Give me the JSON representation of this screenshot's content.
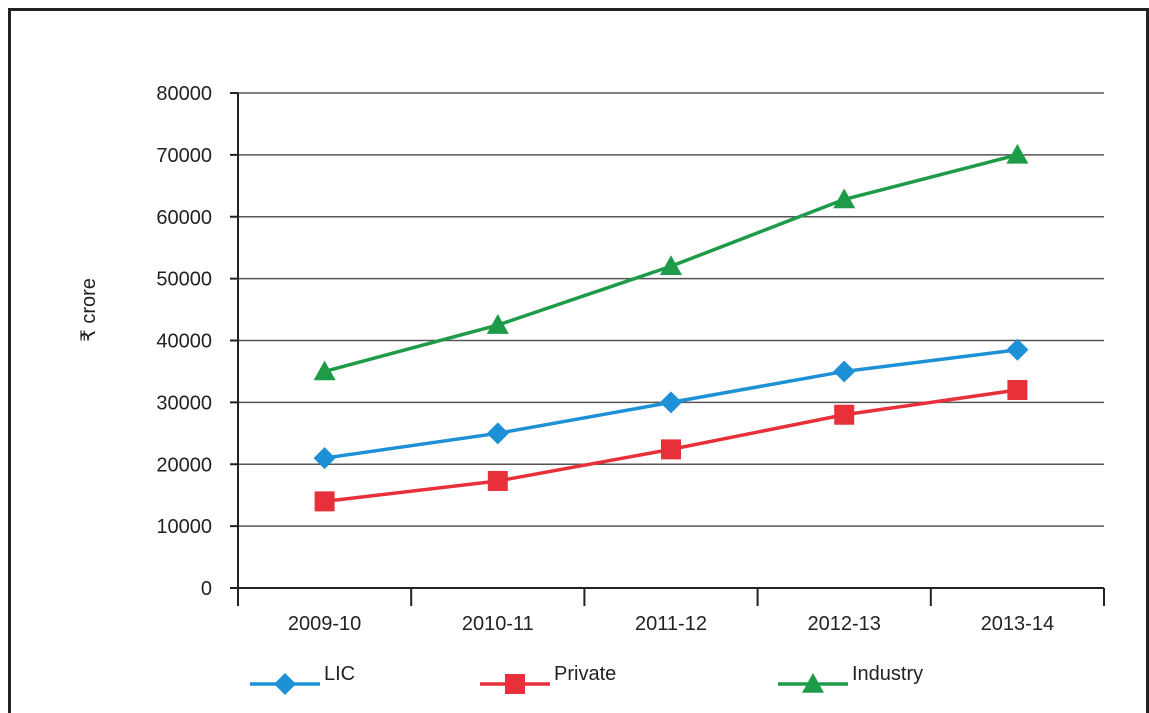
{
  "chart_data": {
    "type": "line",
    "title": "",
    "xlabel": "",
    "ylabel": "₹ crore",
    "categories": [
      "2009-10",
      "2010-11",
      "2011-12",
      "2012-13",
      "2013-14"
    ],
    "ylim": [
      0,
      80000
    ],
    "yticks": [
      0,
      10000,
      20000,
      30000,
      40000,
      50000,
      60000,
      70000,
      80000
    ],
    "ytick_labels": [
      "0",
      "10000",
      "20000",
      "30000",
      "40000",
      "50000",
      "60000",
      "70000",
      "80000"
    ],
    "grid": true,
    "legend_position": "bottom",
    "series": [
      {
        "name": "LIC",
        "values": [
          21000,
          25000,
          30000,
          35000,
          38500
        ],
        "color": "#1E90D6",
        "marker": "diamond"
      },
      {
        "name": "Private",
        "values": [
          14000,
          17300,
          22400,
          28000,
          32000
        ],
        "color": "#E8303A",
        "marker": "square"
      },
      {
        "name": "Industry",
        "values": [
          35000,
          42500,
          52000,
          62800,
          70000
        ],
        "color": "#1E9B48",
        "marker": "triangle"
      }
    ]
  }
}
